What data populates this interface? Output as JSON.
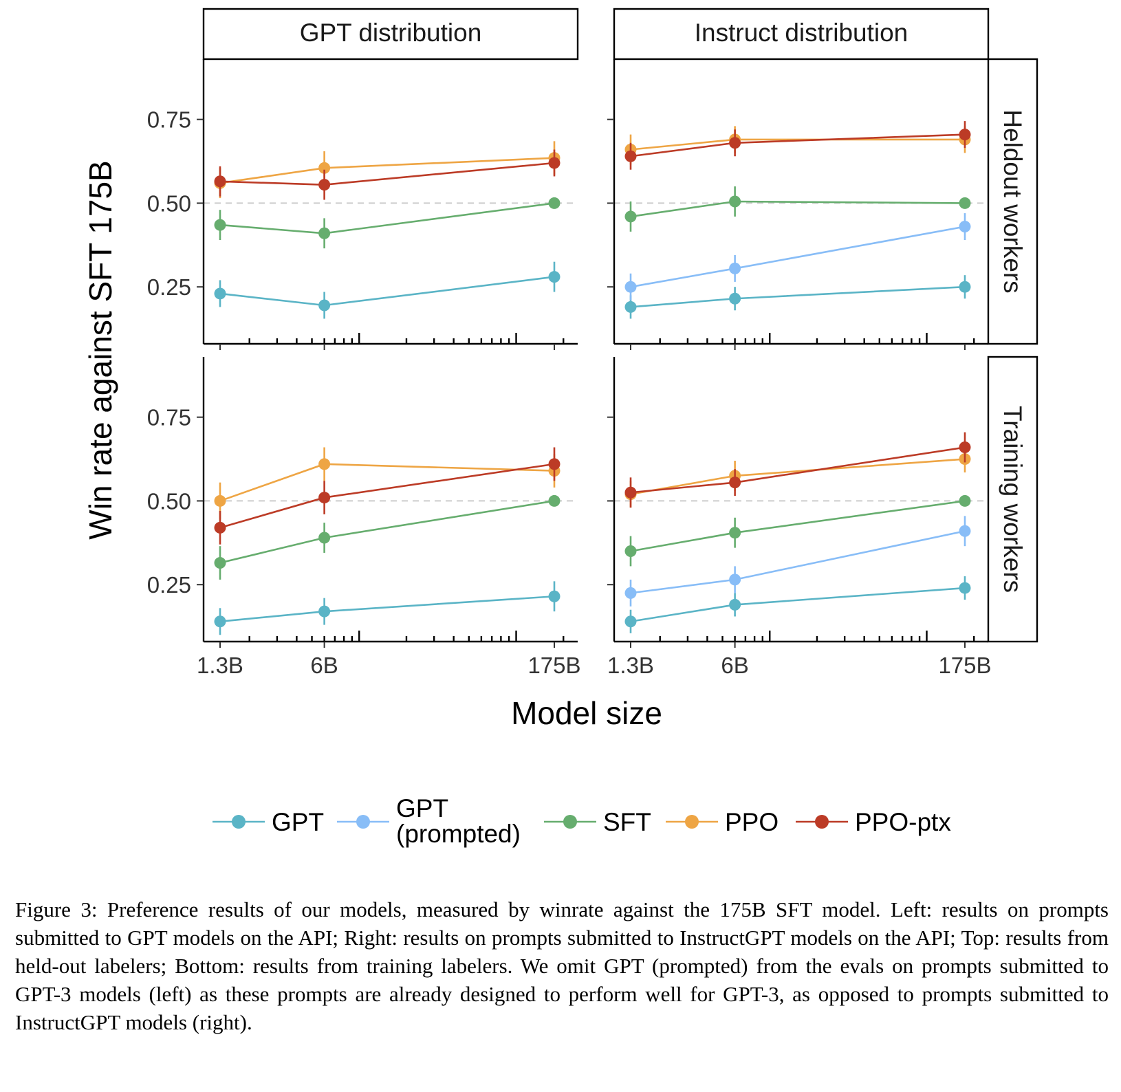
{
  "chart_data": {
    "type": "line",
    "facets": {
      "columns": [
        "GPT distribution",
        "Instruct distribution"
      ],
      "rows": [
        "Heldout workers",
        "Training workers"
      ]
    },
    "xlabel": "Model size",
    "ylabel": "Win rate against SFT 175B",
    "x_scale": "log",
    "x_ticks": [
      {
        "value": 1.3,
        "label": "1.3B"
      },
      {
        "value": 6,
        "label": "6B"
      },
      {
        "value": 175,
        "label": "175B"
      }
    ],
    "y_ticks": [
      {
        "value": 0.25,
        "label": "0.25"
      },
      {
        "value": 0.5,
        "label": "0.50"
      },
      {
        "value": 0.75,
        "label": "0.75"
      }
    ],
    "ylim": [
      0.08,
      0.93
    ],
    "reference_line": 0.5,
    "grid": false,
    "legend_position": "bottom",
    "legend": [
      {
        "key": "gpt",
        "label": "GPT"
      },
      {
        "key": "gptp",
        "label": "GPT\n(prompted)"
      },
      {
        "key": "sft",
        "label": "SFT"
      },
      {
        "key": "ppo",
        "label": "PPO"
      },
      {
        "key": "ptx",
        "label": "PPO-ptx"
      }
    ],
    "colors": {
      "gpt": "#5ab4c6",
      "gptp": "#88bdf7",
      "sft": "#66ad6e",
      "ppo": "#eea544",
      "ptx": "#bc3b26"
    },
    "x": [
      1.3,
      6,
      175
    ],
    "panels": [
      {
        "column": "GPT distribution",
        "row": "Heldout workers",
        "series": [
          {
            "key": "gpt",
            "values": [
              0.23,
              0.195,
              0.28
            ],
            "err": [
              0.04,
              0.04,
              0.045
            ]
          },
          {
            "key": "sft",
            "values": [
              0.435,
              0.41,
              0.5
            ],
            "err": [
              0.045,
              0.045,
              0.0
            ]
          },
          {
            "key": "ppo",
            "values": [
              0.56,
              0.605,
              0.635
            ],
            "err": [
              0.045,
              0.05,
              0.05
            ]
          },
          {
            "key": "ptx",
            "values": [
              0.565,
              0.555,
              0.62
            ],
            "err": [
              0.045,
              0.045,
              0.04
            ]
          }
        ]
      },
      {
        "column": "Instruct distribution",
        "row": "Heldout workers",
        "series": [
          {
            "key": "gpt",
            "values": [
              0.19,
              0.215,
              0.25
            ],
            "err": [
              0.035,
              0.035,
              0.035
            ]
          },
          {
            "key": "gptp",
            "values": [
              0.25,
              0.305,
              0.43
            ],
            "err": [
              0.04,
              0.04,
              0.04
            ]
          },
          {
            "key": "sft",
            "values": [
              0.46,
              0.505,
              0.5
            ],
            "err": [
              0.045,
              0.045,
              0.0
            ]
          },
          {
            "key": "ppo",
            "values": [
              0.66,
              0.69,
              0.69
            ],
            "err": [
              0.045,
              0.04,
              0.04
            ]
          },
          {
            "key": "ptx",
            "values": [
              0.64,
              0.68,
              0.705
            ],
            "err": [
              0.04,
              0.04,
              0.04
            ]
          }
        ]
      },
      {
        "column": "GPT distribution",
        "row": "Training workers",
        "series": [
          {
            "key": "gpt",
            "values": [
              0.14,
              0.17,
              0.215
            ],
            "err": [
              0.04,
              0.04,
              0.045
            ]
          },
          {
            "key": "sft",
            "values": [
              0.315,
              0.39,
              0.5
            ],
            "err": [
              0.05,
              0.045,
              0.0
            ]
          },
          {
            "key": "ppo",
            "values": [
              0.5,
              0.61,
              0.59
            ],
            "err": [
              0.055,
              0.05,
              0.05
            ]
          },
          {
            "key": "ptx",
            "values": [
              0.42,
              0.51,
              0.61
            ],
            "err": [
              0.05,
              0.05,
              0.05
            ]
          }
        ]
      },
      {
        "column": "Instruct distribution",
        "row": "Training workers",
        "series": [
          {
            "key": "gpt",
            "values": [
              0.14,
              0.19,
              0.24
            ],
            "err": [
              0.035,
              0.035,
              0.035
            ]
          },
          {
            "key": "gptp",
            "values": [
              0.225,
              0.265,
              0.41
            ],
            "err": [
              0.04,
              0.04,
              0.045
            ]
          },
          {
            "key": "sft",
            "values": [
              0.35,
              0.405,
              0.5
            ],
            "err": [
              0.045,
              0.045,
              0.0
            ]
          },
          {
            "key": "ppo",
            "values": [
              0.52,
              0.575,
              0.625
            ],
            "err": [
              0.04,
              0.045,
              0.04
            ]
          },
          {
            "key": "ptx",
            "values": [
              0.525,
              0.555,
              0.66
            ],
            "err": [
              0.045,
              0.04,
              0.045
            ]
          }
        ]
      }
    ]
  },
  "caption": {
    "text": "Figure 3: Preference results of our models, measured by winrate against the 175B SFT model. Left: results on prompts submitted to GPT models on the API; Right: results on prompts submitted to InstructGPT models on the API; Top: results from held-out labelers; Bottom: results from training labelers. We omit GPT (prompted) from the evals on prompts submitted to GPT-3 models (left) as these prompts are already designed to perform well for GPT-3, as opposed to prompts submitted to InstructGPT models (right)."
  }
}
